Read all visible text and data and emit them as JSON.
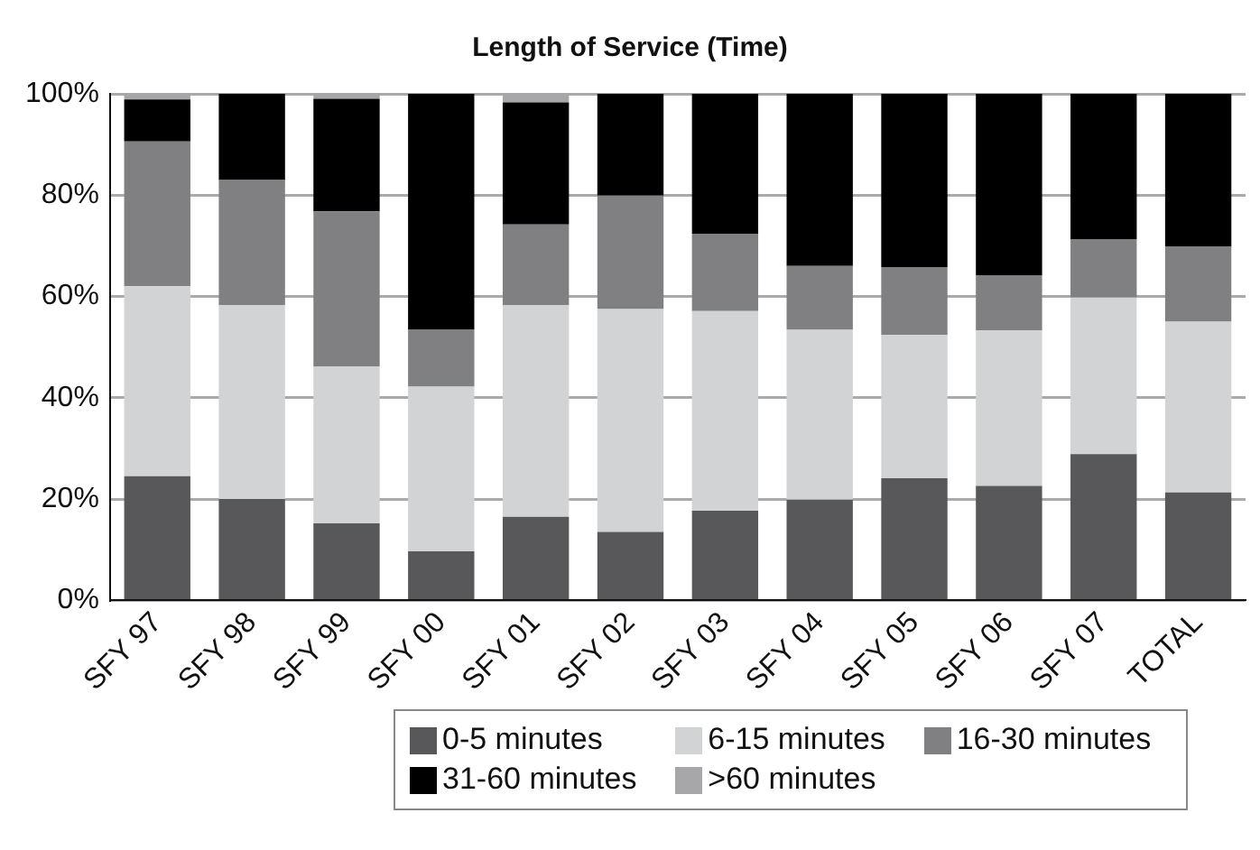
{
  "chart_data": {
    "type": "bar",
    "title": "Length of Service (Time)",
    "stacked": true,
    "categories": [
      "SFY 97",
      "SFY 98",
      "SFY 99",
      "SFY 00",
      "SFY 01",
      "SFY 02",
      "SFY 03",
      "SFY 04",
      "SFY 05",
      "SFY 06",
      "SFY 07",
      "TOTAL"
    ],
    "series": [
      {
        "name": "0-5 minutes",
        "color": "#58585a",
        "values": [
          24.5,
          20,
          15.2,
          9.7,
          16.5,
          13.5,
          17.7,
          19.9,
          24.1,
          22.6,
          28.9,
          21.3
        ]
      },
      {
        "name": "6-15 minutes",
        "color": "#d2d3d5",
        "values": [
          37.5,
          38.3,
          31,
          32.5,
          41.8,
          44,
          39.4,
          33.5,
          28.3,
          30.7,
          30.9,
          33.7
        ]
      },
      {
        "name": "16-30 minutes",
        "color": "#808083",
        "values": [
          28.6,
          24.7,
          30.6,
          11.2,
          15.9,
          22.4,
          15.3,
          12.6,
          13.4,
          10.9,
          11.5,
          14.8
        ]
      },
      {
        "name": "31-60 minutes",
        "color": "#000000",
        "values": [
          8.3,
          17,
          22.2,
          46.6,
          24.1,
          20.1,
          27.6,
          34,
          34.2,
          35.8,
          28.7,
          30.2
        ]
      },
      {
        "name": ">60 minutes",
        "color": "#a7a7aa",
        "values": [
          1.1,
          0,
          1,
          0,
          1.7,
          0,
          0,
          0,
          0,
          0,
          0,
          0
        ]
      }
    ],
    "ylim": [
      0,
      100
    ],
    "yticks": [
      {
        "value": 0,
        "label": "0%"
      },
      {
        "value": 20,
        "label": "20%"
      },
      {
        "value": 40,
        "label": "40%"
      },
      {
        "value": 60,
        "label": "60%"
      },
      {
        "value": 80,
        "label": "80%"
      },
      {
        "value": 100,
        "label": "100%"
      }
    ],
    "grid": "y",
    "legend": "bottom"
  }
}
